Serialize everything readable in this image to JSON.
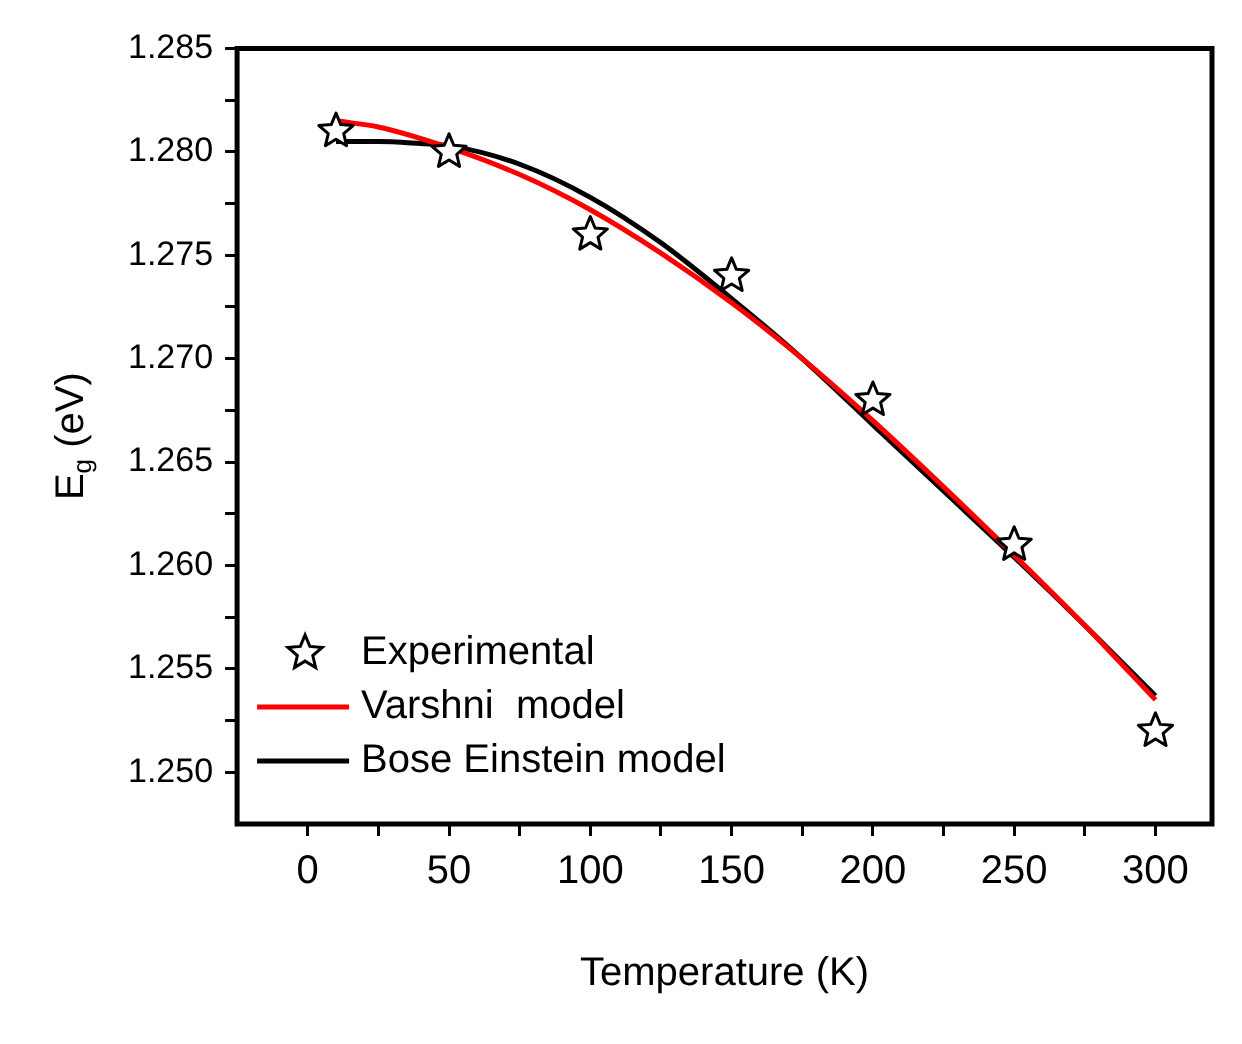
{
  "chart_data": {
    "type": "line",
    "xlabel": "Temperature (K)",
    "ylabel": "E$_{g}$ (eV)",
    "xlim": [
      -25,
      320
    ],
    "xticks": [
      0,
      {
        "value": 25,
        "label": null
      },
      50,
      {
        "value": 75,
        "label": null
      },
      100,
      {
        "value": 125,
        "label": null
      },
      150,
      {
        "value": 175,
        "label": null
      },
      200,
      {
        "value": 225,
        "label": null
      },
      250,
      {
        "value": 275,
        "label": null
      },
      300
    ],
    "ylim": [
      1.2475,
      1.285
    ],
    "yticks": [
      {
        "value": 1.25,
        "label": "1.250"
      },
      {
        "value": 1.2525,
        "label": null
      },
      {
        "value": 1.255,
        "label": "1.255"
      },
      {
        "value": 1.2575,
        "label": null
      },
      {
        "value": 1.26,
        "label": "1.260"
      },
      {
        "value": 1.2625,
        "label": null
      },
      {
        "value": 1.265,
        "label": "1.265"
      },
      {
        "value": 1.2675,
        "label": null
      },
      {
        "value": 1.27,
        "label": "1.270"
      },
      {
        "value": 1.2725,
        "label": null
      },
      {
        "value": 1.275,
        "label": "1.275"
      },
      {
        "value": 1.2775,
        "label": null
      },
      {
        "value": 1.28,
        "label": "1.280"
      },
      {
        "value": 1.2825,
        "label": null
      },
      {
        "value": 1.285,
        "label": "1.285"
      }
    ],
    "grid": false,
    "legend": "bottom left",
    "series": [
      {
        "name": "Experimental",
        "type": "scatter",
        "marker": "star",
        "color": "#000000",
        "x": [
          10,
          50,
          100,
          150,
          200,
          250,
          300
        ],
        "values": [
          1.281,
          1.28,
          1.276,
          1.274,
          1.268,
          1.261,
          1.252
        ]
      },
      {
        "name": "Varshni  model",
        "marker": "none",
        "line_style": "solid",
        "color": "#ff0000",
        "x": [
          10,
          25,
          50,
          75,
          100,
          125,
          150,
          175,
          200,
          225,
          250,
          275,
          300
        ],
        "values": [
          1.2815,
          1.2812,
          1.2802,
          1.2789,
          1.2772,
          1.2751,
          1.2727,
          1.27,
          1.267,
          1.2638,
          1.2605,
          1.2571,
          1.2535
        ]
      },
      {
        "name": "Bose Einstein model",
        "marker": "none",
        "line_style": "solid",
        "color": "#000000",
        "x": [
          10,
          25,
          40,
          50,
          75,
          100,
          125,
          150,
          175,
          200,
          225,
          250,
          275,
          300
        ],
        "values": [
          1.2805,
          1.2805,
          1.2804,
          1.2803,
          1.2794,
          1.2778,
          1.2756,
          1.2729,
          1.27,
          1.2668,
          1.2636,
          1.2604,
          1.2571,
          1.2537
        ]
      }
    ]
  }
}
